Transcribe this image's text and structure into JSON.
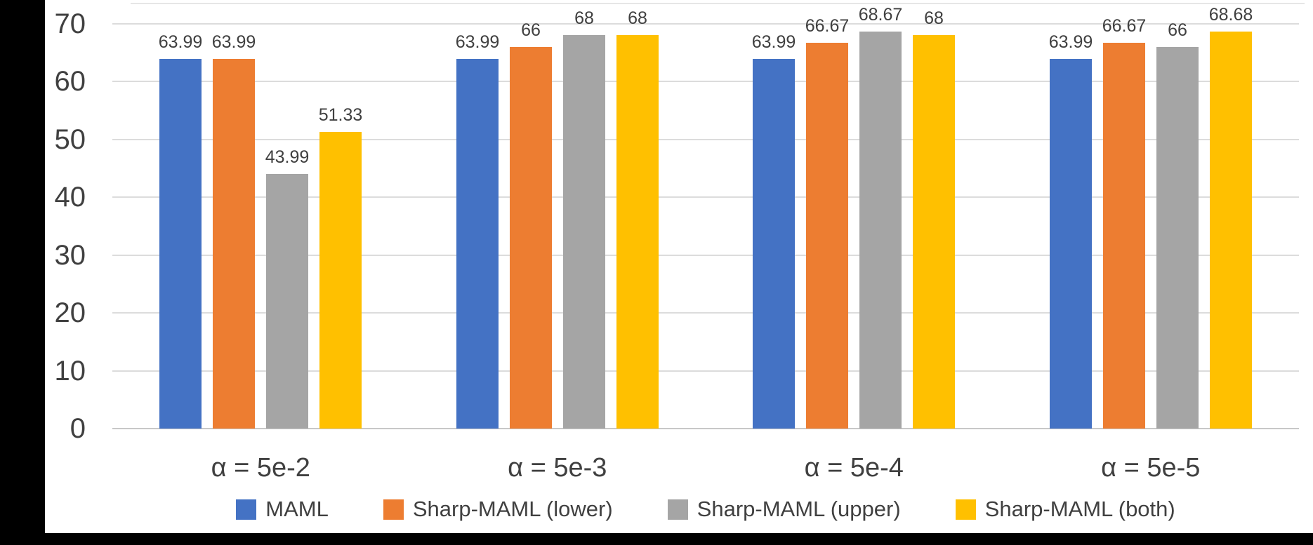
{
  "chart_data": {
    "type": "bar",
    "title": "",
    "categories": [
      "α = 5e-2",
      "α = 5e-3",
      "α = 5e-4",
      "α = 5e-5"
    ],
    "series": [
      {
        "name": "MAML",
        "color": "#4472C4",
        "values": [
          63.99,
          63.99,
          63.99,
          63.99
        ],
        "labels": [
          "63.99",
          "63.99",
          "63.99",
          "63.99"
        ]
      },
      {
        "name": "Sharp-MAML (lower)",
        "color": "#ED7D31",
        "values": [
          63.99,
          66.0,
          66.67,
          66.67
        ],
        "labels": [
          "63.99",
          "66",
          "66.67",
          "66.67"
        ]
      },
      {
        "name": "Sharp-MAML (upper)",
        "color": "#A5A5A5",
        "values": [
          43.99,
          68.0,
          68.67,
          66.0
        ],
        "labels": [
          "43.99",
          "68",
          "68.67",
          "66"
        ]
      },
      {
        "name": "Sharp-MAML (both)",
        "color": "#FFC000",
        "values": [
          51.33,
          68.0,
          68.0,
          68.68
        ],
        "labels": [
          "51.33",
          "68",
          "68",
          "68.68"
        ]
      }
    ],
    "y_axis": {
      "min": 0,
      "max": 70,
      "step": 10,
      "tick_labels": [
        "0",
        "10",
        "20",
        "30",
        "40",
        "50",
        "60",
        "70"
      ]
    },
    "xlabel": "",
    "ylabel": "",
    "grid": true,
    "legend_position": "bottom",
    "data_labels_shown": true
  },
  "colors": {
    "background": "#000000",
    "panel": "#ffffff",
    "text": "#404040",
    "gridline": "#dcdcdc",
    "baseline": "#c8c8c8"
  }
}
